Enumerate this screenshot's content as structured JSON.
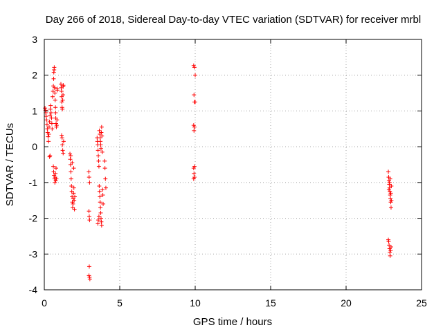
{
  "chart_data": {
    "type": "scatter",
    "title": "Day 266 of 2018, Sidereal Day-to-day VTEC variation (SDTVAR) for receiver mrbl",
    "xlabel": "GPS time / hours",
    "ylabel": "SDTVAR / TECUs",
    "xlim": [
      0,
      25
    ],
    "ylim": [
      -4,
      3
    ],
    "x_ticks": [
      "0",
      "5",
      "10",
      "15",
      "20",
      "25"
    ],
    "x_tick_values": [
      0,
      5,
      10,
      15,
      20,
      25
    ],
    "y_ticks": [
      "-4",
      "-3",
      "-2",
      "-1",
      "0",
      "1",
      "2",
      "3"
    ],
    "y_tick_values": [
      -4,
      -3,
      -2,
      -1,
      0,
      1,
      2,
      3
    ],
    "grid": true,
    "marker": "+",
    "marker_color": "#ff0000",
    "series": [
      {
        "name": "SDTVAR",
        "points": [
          [
            0.05,
            1.08
          ],
          [
            0.08,
            1.02
          ],
          [
            0.1,
            0.95
          ],
          [
            0.12,
            0.85
          ],
          [
            0.15,
            0.75
          ],
          [
            0.18,
            0.62
          ],
          [
            0.2,
            0.5
          ],
          [
            0.22,
            0.4
          ],
          [
            0.25,
            0.28
          ],
          [
            0.28,
            0.15
          ],
          [
            0.3,
            0.35
          ],
          [
            0.32,
            0.55
          ],
          [
            0.35,
            0.7
          ],
          [
            0.38,
            0.88
          ],
          [
            0.4,
            1.05
          ],
          [
            0.42,
            1.15
          ],
          [
            0.45,
            0.95
          ],
          [
            0.48,
            0.8
          ],
          [
            0.5,
            0.65
          ],
          [
            0.52,
            0.5
          ],
          [
            0.35,
            -0.28
          ],
          [
            0.38,
            -0.25
          ],
          [
            0.55,
            1.4
          ],
          [
            0.58,
            1.55
          ],
          [
            0.6,
            1.7
          ],
          [
            0.62,
            1.9
          ],
          [
            0.63,
            2.08
          ],
          [
            0.65,
            2.15
          ],
          [
            0.66,
            2.22
          ],
          [
            0.68,
            1.65
          ],
          [
            0.7,
            1.5
          ],
          [
            0.72,
            1.3
          ],
          [
            0.74,
            1.1
          ],
          [
            0.75,
            0.95
          ],
          [
            0.76,
            0.8
          ],
          [
            0.78,
            0.65
          ],
          [
            0.8,
            0.55
          ],
          [
            0.82,
            0.6
          ],
          [
            0.84,
            0.75
          ],
          [
            0.85,
            1.62
          ],
          [
            0.86,
            1.58
          ],
          [
            0.6,
            -0.55
          ],
          [
            0.62,
            -0.7
          ],
          [
            0.65,
            -0.8
          ],
          [
            0.68,
            -0.9
          ],
          [
            0.7,
            -1.0
          ],
          [
            0.72,
            -0.85
          ],
          [
            0.74,
            -0.75
          ],
          [
            0.76,
            -0.95
          ],
          [
            0.78,
            -0.6
          ],
          [
            0.8,
            -0.9
          ],
          [
            1.1,
            1.75
          ],
          [
            1.12,
            1.65
          ],
          [
            1.14,
            1.55
          ],
          [
            1.15,
            1.4
          ],
          [
            1.16,
            1.25
          ],
          [
            1.18,
            1.1
          ],
          [
            1.2,
            1.05
          ],
          [
            1.22,
            1.3
          ],
          [
            1.24,
            1.45
          ],
          [
            1.25,
            1.68
          ],
          [
            1.26,
            1.72
          ],
          [
            1.15,
            0.32
          ],
          [
            1.18,
            0.25
          ],
          [
            1.2,
            0.05
          ],
          [
            1.22,
            -0.1
          ],
          [
            1.25,
            -0.18
          ],
          [
            1.28,
            0.15
          ],
          [
            1.7,
            -0.2
          ],
          [
            1.72,
            -0.35
          ],
          [
            1.74,
            -0.5
          ],
          [
            1.76,
            -0.7
          ],
          [
            1.78,
            -0.9
          ],
          [
            1.8,
            -1.1
          ],
          [
            1.82,
            -1.25
          ],
          [
            1.84,
            -1.4
          ],
          [
            1.86,
            -1.55
          ],
          [
            1.88,
            -1.7
          ],
          [
            1.9,
            -1.6
          ],
          [
            1.92,
            -1.45
          ],
          [
            1.94,
            -1.3
          ],
          [
            1.96,
            -1.15
          ],
          [
            1.98,
            -1.5
          ],
          [
            2.0,
            -1.75
          ],
          [
            2.02,
            -1.4
          ],
          [
            1.75,
            -0.25
          ],
          [
            1.85,
            -0.45
          ],
          [
            1.95,
            -0.6
          ],
          [
            2.95,
            -0.7
          ],
          [
            2.97,
            -0.85
          ],
          [
            3.0,
            -1.0
          ],
          [
            2.96,
            -1.8
          ],
          [
            2.98,
            -1.95
          ],
          [
            3.0,
            -2.05
          ],
          [
            2.98,
            -3.35
          ],
          [
            2.96,
            -3.6
          ],
          [
            3.0,
            -3.65
          ],
          [
            3.02,
            -3.7
          ],
          [
            3.5,
            0.25
          ],
          [
            3.52,
            0.15
          ],
          [
            3.54,
            0.05
          ],
          [
            3.56,
            -0.1
          ],
          [
            3.58,
            -0.25
          ],
          [
            3.6,
            -0.4
          ],
          [
            3.62,
            -0.55
          ],
          [
            3.64,
            -1.1
          ],
          [
            3.66,
            -1.25
          ],
          [
            3.68,
            -1.4
          ],
          [
            3.7,
            -1.55
          ],
          [
            3.72,
            -1.7
          ],
          [
            3.74,
            -1.85
          ],
          [
            3.76,
            -2.0
          ],
          [
            3.78,
            -2.1
          ],
          [
            3.8,
            -2.2
          ],
          [
            3.55,
            -2.15
          ],
          [
            3.58,
            -2.05
          ],
          [
            3.62,
            -1.95
          ],
          [
            3.65,
            0.45
          ],
          [
            3.68,
            0.35
          ],
          [
            3.7,
            0.25
          ],
          [
            3.72,
            0.15
          ],
          [
            3.74,
            0.05
          ],
          [
            3.76,
            -0.05
          ],
          [
            3.78,
            0.4
          ],
          [
            3.8,
            0.55
          ],
          [
            3.82,
            0.3
          ],
          [
            3.84,
            -0.15
          ],
          [
            3.86,
            -1.2
          ],
          [
            3.88,
            -1.35
          ],
          [
            3.9,
            -1.6
          ],
          [
            4.0,
            -0.4
          ],
          [
            4.02,
            -0.6
          ],
          [
            4.05,
            -0.9
          ],
          [
            4.08,
            -1.15
          ],
          [
            9.9,
            2.27
          ],
          [
            9.95,
            2.22
          ],
          [
            10.0,
            2.0
          ],
          [
            9.92,
            1.45
          ],
          [
            9.95,
            1.25
          ],
          [
            10.0,
            1.25
          ],
          [
            9.9,
            0.6
          ],
          [
            9.95,
            0.55
          ],
          [
            9.92,
            0.45
          ],
          [
            9.9,
            -0.6
          ],
          [
            9.95,
            -0.55
          ],
          [
            9.92,
            -0.75
          ],
          [
            9.95,
            -0.85
          ],
          [
            9.9,
            -0.9
          ],
          [
            22.8,
            -0.7
          ],
          [
            22.82,
            -0.85
          ],
          [
            22.84,
            -0.95
          ],
          [
            22.86,
            -1.05
          ],
          [
            22.88,
            -1.15
          ],
          [
            22.9,
            -1.25
          ],
          [
            22.92,
            -1.35
          ],
          [
            22.94,
            -1.45
          ],
          [
            22.96,
            -1.55
          ],
          [
            22.98,
            -1.7
          ],
          [
            23.0,
            -1.1
          ],
          [
            22.84,
            -1.2
          ],
          [
            22.88,
            -1.0
          ],
          [
            22.92,
            -0.9
          ],
          [
            22.96,
            -1.3
          ],
          [
            23.0,
            -1.5
          ],
          [
            22.8,
            -2.6
          ],
          [
            22.82,
            -2.65
          ],
          [
            22.85,
            -2.75
          ],
          [
            22.88,
            -2.85
          ],
          [
            22.9,
            -2.95
          ],
          [
            22.92,
            -3.05
          ],
          [
            22.95,
            -2.9
          ],
          [
            22.98,
            -2.8
          ]
        ]
      }
    ]
  }
}
